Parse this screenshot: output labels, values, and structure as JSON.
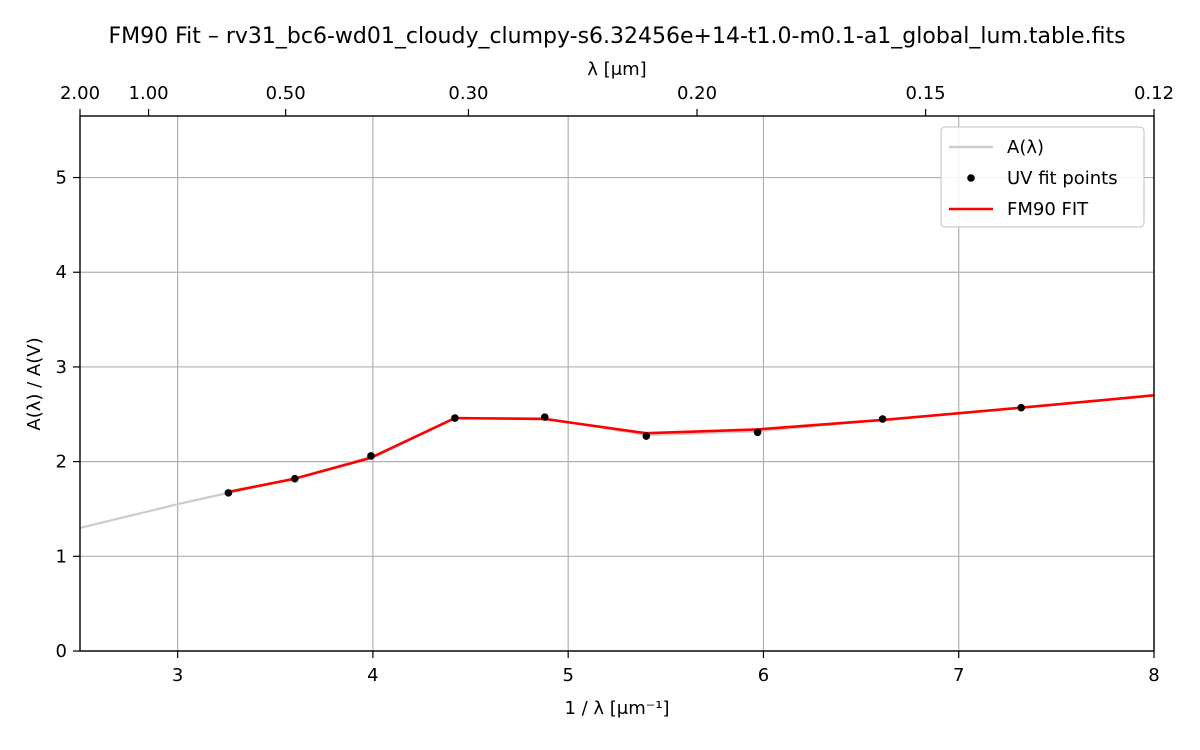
{
  "chart_data": {
    "type": "line",
    "title": "FM90 Fit – rv31_bc6-wd01_cloudy_clumpy-s6.32456e+14-t1.0-m0.1-a1_global_lum.table.fits",
    "xlabel": "1 / λ [μm⁻¹]",
    "ylabel": "A(λ) / A(V)",
    "top_xlabel": "λ [μm]",
    "xlim": [
      2.5,
      8.0
    ],
    "ylim": [
      0,
      5.65
    ],
    "xticks": [
      3,
      4,
      5,
      6,
      7,
      8
    ],
    "yticks": [
      0,
      1,
      2,
      3,
      4,
      5
    ],
    "top_ticks": [
      {
        "value": 0.5,
        "label": "2.00"
      },
      {
        "value": 1.0,
        "label": "1.00"
      },
      {
        "value": 2.0,
        "label": "0.50"
      },
      {
        "value": 3.333,
        "label": "0.30"
      },
      {
        "value": 5.0,
        "label": "0.20"
      },
      {
        "value": 6.667,
        "label": "0.15"
      },
      {
        "value": 8.333,
        "label": "0.12"
      }
    ],
    "grid": true,
    "legend_placement": "top-right",
    "series": [
      {
        "name": "A(λ)",
        "style": "line",
        "color": "#cccccc",
        "x": [
          2.5,
          3.0,
          3.26,
          3.6,
          4.0,
          4.42,
          4.88,
          5.4,
          5.97,
          6.61,
          7.32,
          8.0
        ],
        "y": [
          1.3,
          1.55,
          1.67,
          1.82,
          2.06,
          2.46,
          2.46,
          2.28,
          2.32,
          2.44,
          2.57,
          2.7
        ]
      },
      {
        "name": "UV fit points",
        "style": "points",
        "color": "#000000",
        "x": [
          3.26,
          3.6,
          3.99,
          4.42,
          4.88,
          5.4,
          5.97,
          6.61,
          7.32
        ],
        "y": [
          1.67,
          1.82,
          2.06,
          2.46,
          2.47,
          2.27,
          2.31,
          2.45,
          2.57
        ]
      },
      {
        "name": "FM90 FIT",
        "style": "line",
        "color": "#ff0000",
        "x": [
          3.26,
          3.6,
          3.99,
          4.42,
          4.88,
          5.4,
          5.97,
          6.61,
          7.32,
          8.0
        ],
        "y": [
          1.68,
          1.82,
          2.04,
          2.46,
          2.45,
          2.3,
          2.34,
          2.44,
          2.57,
          2.7
        ]
      }
    ]
  }
}
